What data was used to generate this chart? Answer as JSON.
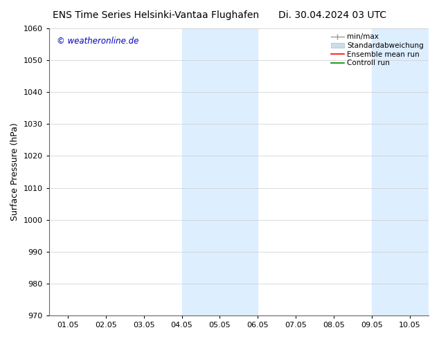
{
  "title_left": "ENS Time Series Helsinki-Vantaa Flughafen",
  "title_right": "Di. 30.04.2024 03 UTC",
  "ylabel": "Surface Pressure (hPa)",
  "xlim_dates": [
    "01.05",
    "02.05",
    "03.05",
    "04.05",
    "05.05",
    "06.05",
    "07.05",
    "08.05",
    "09.05",
    "10.05"
  ],
  "ylim": [
    970,
    1060
  ],
  "yticks": [
    970,
    980,
    990,
    1000,
    1010,
    1020,
    1030,
    1040,
    1050,
    1060
  ],
  "shaded_regions": [
    {
      "xstart": 3.0,
      "xend": 5.0,
      "color": "#ddeeff"
    },
    {
      "xstart": 8.0,
      "xend": 9.5,
      "color": "#ddeeff"
    }
  ],
  "watermark": "© weatheronline.de",
  "watermark_color": "#0000bb",
  "legend_entries": [
    {
      "label": "min/max",
      "type": "errorbar",
      "color": "#999999"
    },
    {
      "label": "Standardabweichung",
      "type": "bar",
      "color": "#ccdde8"
    },
    {
      "label": "Ensemble mean run",
      "type": "line",
      "color": "red"
    },
    {
      "label": "Controll run",
      "type": "line",
      "color": "green"
    }
  ],
  "background_color": "#ffffff",
  "plot_bg_color": "#ffffff",
  "grid_color": "#cccccc",
  "tick_label_fontsize": 8,
  "axis_label_fontsize": 9,
  "title_fontsize": 10
}
